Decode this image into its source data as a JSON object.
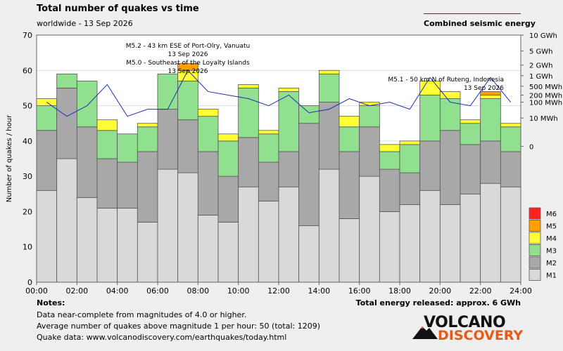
{
  "header": {
    "title": "Total number of quakes vs time",
    "subtitle": "worldwide - 13 Sep 2026",
    "energy_legend": "Combined seismic energy"
  },
  "notes": {
    "heading": "Notes:",
    "lines": [
      "Data near-complete from magnitudes of 4.0 or higher.",
      "Average number of quakes above magnitude 1 per hour: 50 (total: 1209)",
      "Quake data: www.volcanodiscovery.com/earthquakes/today.html"
    ],
    "energy_total": "Total energy released: approx. 6 GWh"
  },
  "logo": {
    "line1": "VOLCANO",
    "line2": "DISCOVERY"
  },
  "chart_data": {
    "type": "bar",
    "stacked": true,
    "ylabel": "Number of quakes / hour",
    "ylim": [
      0,
      70
    ],
    "yticks": [
      0,
      10,
      20,
      30,
      40,
      50,
      60,
      70
    ],
    "xticks": [
      "00:00",
      "02:00",
      "04:00",
      "06:00",
      "08:00",
      "10:00",
      "12:00",
      "14:00",
      "16:00",
      "18:00",
      "20:00",
      "22:00",
      "24:00"
    ],
    "grid": true,
    "legend_position": "right-bottom",
    "series": [
      {
        "name": "M1",
        "color": "#d9d9d9",
        "values": [
          26,
          35,
          24,
          21,
          21,
          17,
          32,
          31,
          19,
          17,
          27,
          23,
          27,
          16,
          32,
          18,
          30,
          20,
          22,
          26,
          22,
          25,
          28,
          27
        ]
      },
      {
        "name": "M2",
        "color": "#a8a8a8",
        "values": [
          17,
          20,
          20,
          14,
          13,
          20,
          17,
          15,
          18,
          13,
          14,
          11,
          10,
          29,
          19,
          19,
          14,
          12,
          9,
          14,
          21,
          14,
          12,
          10
        ]
      },
      {
        "name": "M3",
        "color": "#90e090",
        "values": [
          7,
          4,
          13,
          8,
          8,
          7,
          10,
          11,
          10,
          10,
          14,
          8,
          17,
          5,
          8,
          7,
          6,
          5,
          8,
          13,
          9,
          6,
          12,
          7
        ]
      },
      {
        "name": "M4",
        "color": "#ffff33",
        "values": [
          2,
          0,
          0,
          3,
          0,
          1,
          0,
          3,
          2,
          2,
          1,
          1,
          1,
          0,
          1,
          3,
          1,
          2,
          1,
          4,
          2,
          1,
          1,
          1
        ]
      },
      {
        "name": "M5",
        "color": "#ffa000",
        "values": [
          0,
          0,
          0,
          0,
          0,
          0,
          0,
          2,
          0,
          0,
          0,
          0,
          0,
          0,
          0,
          0,
          0,
          0,
          0,
          0,
          0,
          0,
          1,
          0
        ]
      },
      {
        "name": "M6",
        "color": "#ff2020",
        "values": [
          0,
          0,
          0,
          0,
          0,
          0,
          0,
          0,
          0,
          0,
          0,
          0,
          0,
          0,
          0,
          0,
          0,
          0,
          0,
          0,
          0,
          0,
          0,
          0
        ]
      }
    ],
    "energy_axis": {
      "labels": [
        "10 GWh",
        "5 GWh",
        "2 GWh",
        "1 GWh",
        "500 MWh",
        "200 MWh",
        "100 MWh",
        "10 MWh",
        "0"
      ],
      "label_levels": [
        70,
        65.5,
        61.5,
        58.5,
        55.5,
        53,
        51,
        46.5,
        38.5
      ]
    },
    "energy_series": {
      "name": "Combined seismic energy",
      "color": "#1f2fb8",
      "values": [
        51,
        47,
        50,
        56,
        47,
        49,
        49,
        60,
        54,
        53,
        52,
        50,
        53,
        48,
        49,
        52,
        50,
        51,
        49,
        58,
        51,
        50,
        58,
        51
      ]
    },
    "annotations": [
      {
        "lines": [
          "M5.2 - 43 km ESE of Port-Olry, Vanuatu",
          "13 Sep 2026",
          "M5.0 - Southeast of the Loyalty Islands",
          "13 Sep 2026"
        ],
        "hour": 7.5
      },
      {
        "lines": [
          "M5.1 - 50 km N of Ruteng, Indonesia",
          "13 Sep 2026"
        ],
        "hour": 22.5
      }
    ]
  }
}
